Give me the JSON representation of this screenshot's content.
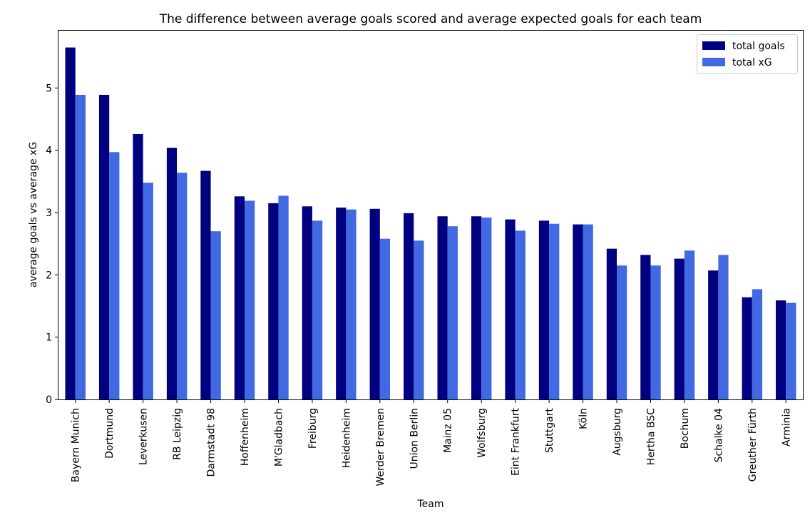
{
  "chart_data": {
    "type": "bar",
    "title": "The difference between average goals scored and average expected goals for each team",
    "xlabel": "Team",
    "ylabel": "average goals vs average xG",
    "ylim": [
      0,
      5.92
    ],
    "yticks": [
      0,
      1,
      2,
      3,
      4,
      5
    ],
    "grid": false,
    "legend_position": "top-right",
    "categories": [
      "Bayern Munich",
      "Dortmund",
      "Leverkusen",
      "RB Leipzig",
      "Darmstadt 98",
      "Hoffenheim",
      "M'Gladbach",
      "Freiburg",
      "Heidenheim",
      "Werder Bremen",
      "Union Berlin",
      "Mainz 05",
      "Wolfsburg",
      "Eint Frankfurt",
      "Stuttgart",
      "Köln",
      "Augsburg",
      "Hertha BSC",
      "Bochum",
      "Schalke 04",
      "Greuther Fürth",
      "Arminia"
    ],
    "series": [
      {
        "name": "total goals",
        "color": "#000080",
        "values": [
          5.65,
          4.89,
          4.26,
          4.04,
          3.67,
          3.26,
          3.15,
          3.1,
          3.08,
          3.06,
          2.99,
          2.94,
          2.94,
          2.89,
          2.87,
          2.81,
          2.42,
          2.32,
          2.26,
          2.07,
          1.64,
          1.59
        ]
      },
      {
        "name": "total xG",
        "color": "#4169E1",
        "values": [
          4.89,
          3.97,
          3.48,
          3.64,
          2.7,
          3.19,
          3.27,
          2.87,
          3.05,
          2.58,
          2.55,
          2.78,
          2.92,
          2.71,
          2.82,
          2.81,
          2.15,
          2.15,
          2.39,
          2.32,
          1.77,
          1.55
        ]
      }
    ]
  }
}
